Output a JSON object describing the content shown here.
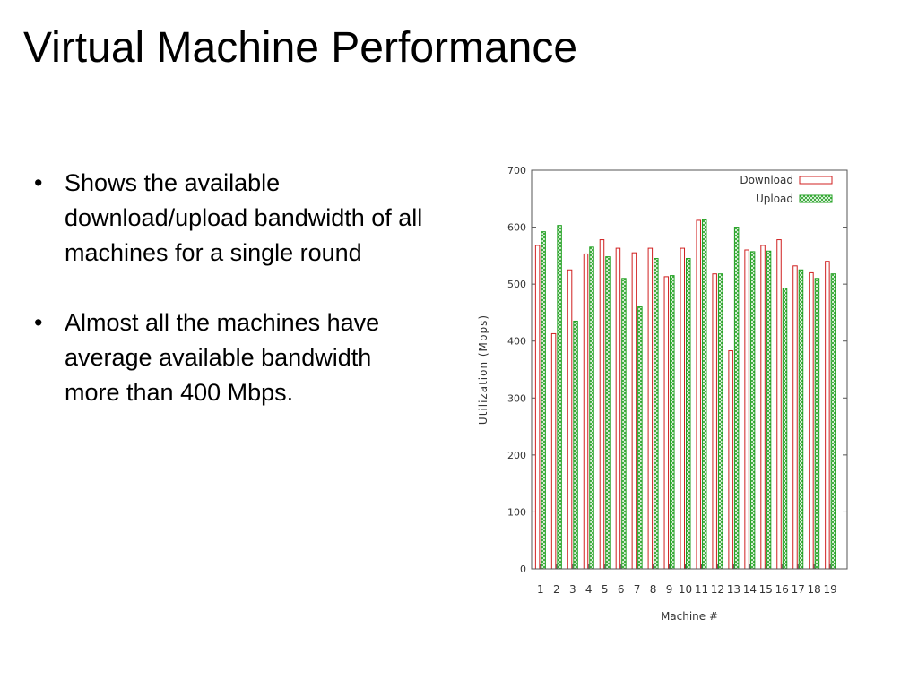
{
  "slide": {
    "title": "Virtual Machine Performance",
    "bullets": [
      "Shows the available download/upload bandwidth of all machines for a single round",
      "Almost all the machines have average available bandwidth more than 400 Mbps."
    ]
  },
  "chart_data": {
    "type": "bar",
    "title": "",
    "xlabel": "Machine #",
    "ylabel": "Utilization (Mbps)",
    "ylim": [
      0,
      700
    ],
    "yticks": [
      0,
      100,
      200,
      300,
      400,
      500,
      600,
      700
    ],
    "categories": [
      "1",
      "2",
      "3",
      "4",
      "5",
      "6",
      "7",
      "8",
      "9",
      "10",
      "11",
      "12",
      "13",
      "14",
      "15",
      "16",
      "17",
      "18",
      "19"
    ],
    "series": [
      {
        "name": "Download",
        "color": "#d02020",
        "pattern": "outline",
        "values": [
          568,
          413,
          525,
          553,
          578,
          563,
          555,
          563,
          513,
          563,
          612,
          518,
          383,
          560,
          568,
          578,
          532,
          520,
          540
        ]
      },
      {
        "name": "Upload",
        "color": "#20a020",
        "pattern": "crosshatch",
        "values": [
          592,
          603,
          435,
          565,
          548,
          510,
          460,
          545,
          515,
          545,
          613,
          518,
          600,
          557,
          558,
          493,
          525,
          510,
          518
        ]
      }
    ],
    "legend_position": "top-right",
    "grid": false
  }
}
